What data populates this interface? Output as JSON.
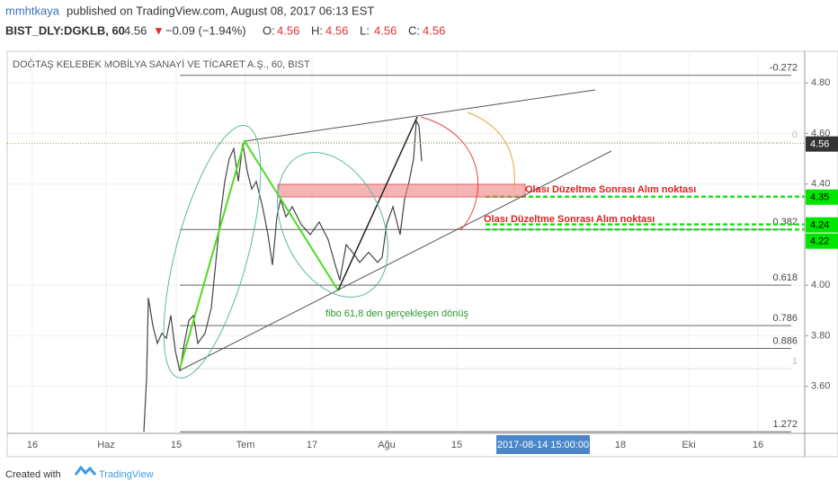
{
  "header": {
    "author": "mmhtkaya",
    "published": "published on TradingView.com, August 08, 2017 06:13 EST",
    "symbol": "BIST_DLY:DGKLB, 60",
    "last": 4.56,
    "arrow": "▼",
    "change": "−0.09 (−1.94%)",
    "ohlc": [
      {
        "key": "O:",
        "value": 4.56
      },
      {
        "key": "H:",
        "value": 4.56
      },
      {
        "key": "L:",
        "value": 4.56
      },
      {
        "key": "C:",
        "value": 4.56
      }
    ]
  },
  "chart_data": {
    "type": "line",
    "title": "DOĞTAŞ KELEBEK MOBİLYA SANAYİ VE TİCARET A.Ş., 60, BIST",
    "color": "#444444",
    "x": [
      152,
      155,
      157,
      162,
      167,
      172,
      177,
      182,
      187,
      192,
      197,
      202,
      207,
      212,
      220,
      227,
      232,
      237,
      242,
      247,
      252,
      257,
      262,
      267,
      272,
      277,
      284,
      290,
      295,
      300,
      304,
      310,
      317,
      327,
      337,
      347,
      357,
      364,
      370,
      377,
      384,
      392,
      402,
      412,
      417,
      422,
      429,
      437,
      442,
      447,
      452,
      455,
      458,
      461
    ],
    "values": [
      3.42,
      3.63,
      3.95,
      3.84,
      3.77,
      3.81,
      3.79,
      3.88,
      3.74,
      3.66,
      3.77,
      3.86,
      3.88,
      3.77,
      3.81,
      3.91,
      4.09,
      4.27,
      4.41,
      4.5,
      4.54,
      4.41,
      4.56,
      4.45,
      4.38,
      4.41,
      4.31,
      4.2,
      4.08,
      4.27,
      4.34,
      4.27,
      4.31,
      4.24,
      4.2,
      4.25,
      4.18,
      4.09,
      4.02,
      4.16,
      4.13,
      4.09,
      4.13,
      4.09,
      4.11,
      4.24,
      4.31,
      4.2,
      4.34,
      4.41,
      4.5,
      4.65,
      4.63,
      4.49
    ],
    "xlim": [
      0,
      887
    ],
    "xticks": [
      {
        "value": 28,
        "label": "16"
      },
      {
        "value": 110,
        "label": "Haz"
      },
      {
        "value": 188,
        "label": "15"
      },
      {
        "value": 265,
        "label": "Tem"
      },
      {
        "value": 339,
        "label": "17"
      },
      {
        "value": 422,
        "label": "Ağu"
      },
      {
        "value": 500,
        "label": "15"
      },
      {
        "value": 682,
        "label": "18"
      },
      {
        "value": 758,
        "label": "Eki"
      },
      {
        "value": 835,
        "label": "16"
      }
    ],
    "cursor": {
      "value": 596,
      "label": "2017-08-14 15:00:00"
    },
    "ylim": [
      3.414,
      4.925
    ],
    "yticks": [
      {
        "value": 3.6,
        "label": "3.60"
      },
      {
        "value": 3.8,
        "label": "3.80"
      },
      {
        "value": 4.0,
        "label": "4.00"
      },
      {
        "value": 4.4,
        "label": "4.40"
      },
      {
        "value": 4.6,
        "label": "4.60"
      },
      {
        "value": 4.8,
        "label": "4.80"
      }
    ],
    "fib_levels": [
      {
        "level": -0.272,
        "price": 4.83
      },
      {
        "level": 0,
        "price": 4.565
      },
      {
        "level": 0.382,
        "price": 4.22
      },
      {
        "level": 0.618,
        "price": 4.0
      },
      {
        "level": 0.786,
        "price": 3.84
      },
      {
        "level": 0.886,
        "price": 3.75
      },
      {
        "level": 1,
        "price": 3.67
      },
      {
        "level": 1.272,
        "price": 3.42
      }
    ],
    "price_badges": [
      {
        "value": 4.56,
        "color": "#333333"
      },
      {
        "value": 4.35,
        "color": "#00e600"
      },
      {
        "value": 4.24,
        "color": "#00e600"
      },
      {
        "value": 4.22,
        "color": "#00e600"
      }
    ],
    "annotations": [
      "Olası Düzeltme Sonrası Alım noktası",
      "Olası Düzeltme Sonrası Alım noktası",
      "fibo 61,8 den gerçekleşen dönüş"
    ]
  },
  "footer": {
    "created": "Created with",
    "brand": "TradingView"
  }
}
